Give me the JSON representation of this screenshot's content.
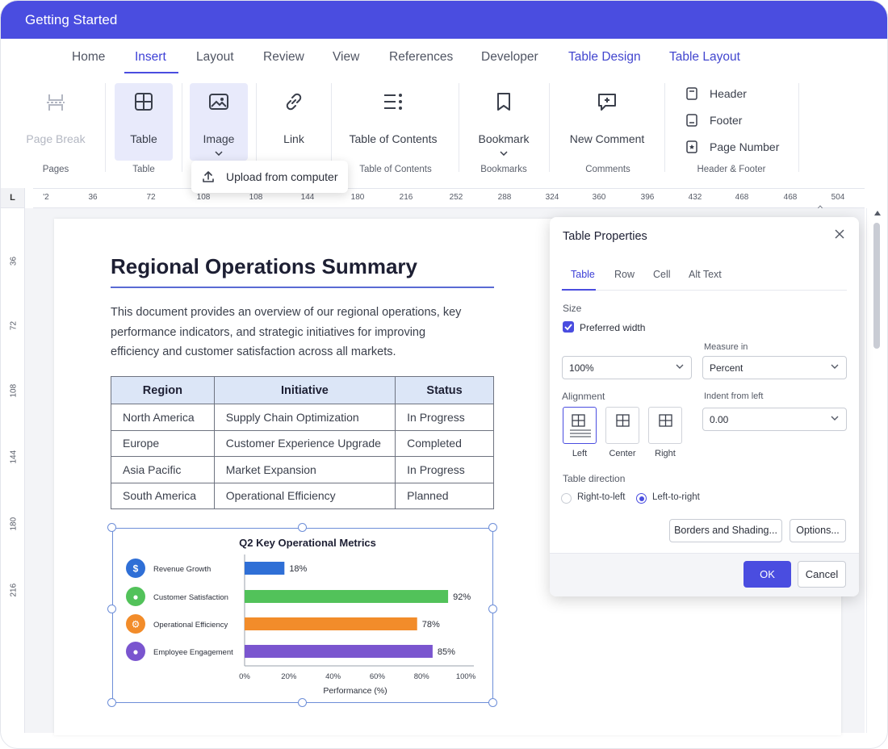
{
  "window": {
    "title": "Getting Started"
  },
  "tabs": [
    {
      "label": "Home"
    },
    {
      "label": "Insert"
    },
    {
      "label": "Layout"
    },
    {
      "label": "Review"
    },
    {
      "label": "View"
    },
    {
      "label": "References"
    },
    {
      "label": "Developer"
    },
    {
      "label": "Table Design"
    },
    {
      "label": "Table Layout"
    }
  ],
  "ribbon": {
    "page_break": "Page Break",
    "table": "Table",
    "image": "Image",
    "link": "Link",
    "toc": "Table of Contents",
    "bookmark": "Bookmark",
    "new_comment": "New Comment",
    "header": "Header",
    "footer": "Footer",
    "page_number": "Page Number",
    "groups": {
      "pages": "Pages",
      "table": "Table",
      "toc": "Table of Contents",
      "bookmarks": "Bookmarks",
      "comments": "Comments",
      "header_footer": "Header & Footer"
    }
  },
  "image_dropdown": {
    "upload": "Upload from computer"
  },
  "ruler": {
    "corner": "L",
    "h_ticks": [
      "'2",
      "36",
      "72",
      "108",
      "108",
      "144",
      "180",
      "216",
      "252",
      "288",
      "324",
      "360",
      "396",
      "432",
      "468",
      "468",
      "504"
    ],
    "v_ticks": [
      "36",
      "72",
      "108",
      "144",
      "180",
      "216"
    ]
  },
  "document": {
    "title": "Regional Operations Summary",
    "intro": "This document provides an overview of our regional operations, key performance indicators, and strategic initiatives for improving efficiency and customer satisfaction across all markets.",
    "table": {
      "headers": [
        "Region",
        "Initiative",
        "Status"
      ],
      "rows": [
        [
          "North America",
          "Supply Chain Optimization",
          "In Progress"
        ],
        [
          "Europe",
          "Customer Experience Upgrade",
          "Completed"
        ],
        [
          "Asia Pacific",
          "Market Expansion",
          "In Progress"
        ],
        [
          "South America",
          "Operational Efficiency",
          "Planned"
        ]
      ]
    }
  },
  "chart_data": {
    "type": "bar",
    "orientation": "horizontal",
    "title": "Q2 Key Operational Metrics",
    "xlabel": "Performance (%)",
    "categories": [
      "Revenue Growth",
      "Customer Satisfaction",
      "Operational Efficiency",
      "Employee Engagement"
    ],
    "values": [
      18,
      92,
      78,
      85
    ],
    "data_labels": [
      "18%",
      "92%",
      "78%",
      "85%"
    ],
    "icons": [
      "dollar-icon",
      "user-icon",
      "gear-icon",
      "team-icon"
    ],
    "colors": [
      "#2f6fd6",
      "#52c25a",
      "#f28c2a",
      "#7a55cf"
    ],
    "xlim": [
      0,
      100
    ],
    "xticks": [
      "0%",
      "20%",
      "40%",
      "60%",
      "80%",
      "100%"
    ],
    "grid": false
  },
  "dialog": {
    "title": "Table Properties",
    "tabs": [
      "Table",
      "Row",
      "Cell",
      "Alt Text"
    ],
    "size_label": "Size",
    "preferred_width_label": "Preferred width",
    "width_value": "100%",
    "measure_label": "Measure in",
    "measure_value": "Percent",
    "alignment_label": "Alignment",
    "alignments": [
      "Left",
      "Center",
      "Right"
    ],
    "indent_label": "Indent from left",
    "indent_value": "0.00",
    "direction_label": "Table direction",
    "directions": [
      "Right-to-left",
      "Left-to-right"
    ],
    "borders_button": "Borders and Shading...",
    "options_button": "Options...",
    "ok": "OK",
    "cancel": "Cancel"
  },
  "colors": {
    "accent": "#4a4de0",
    "table_header": "#dce6f7"
  }
}
